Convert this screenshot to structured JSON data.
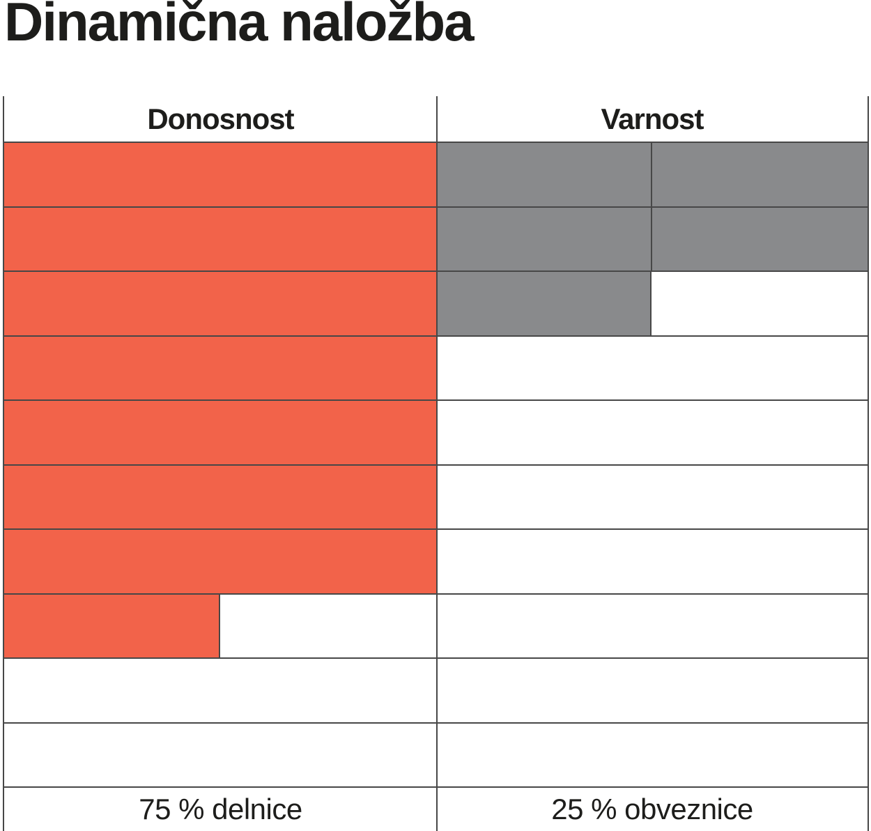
{
  "title": "Dinamična naložba",
  "colors": {
    "orange": "#F2634A",
    "gray": "#898A8C",
    "line": "#474747",
    "text": "#1D1D1B"
  },
  "table": {
    "header": {
      "left": "Donosnost",
      "right": "Varnost"
    },
    "footer": {
      "left": "75 % delnice",
      "right": "25 % obveznice"
    }
  },
  "chart_data": {
    "type": "bar",
    "subtype": "rating-grid",
    "title": "Dinamična naložba",
    "rows_total": 10,
    "columns": [
      {
        "header": "Donosnost",
        "label": "75 % delnice",
        "value_pct": 75,
        "filled_rows": 7.5,
        "color": "#F2634A"
      },
      {
        "header": "Varnost",
        "label": "25 % obveznice",
        "value_pct": 25,
        "filled_rows": 2.5,
        "color": "#898A8C"
      }
    ],
    "row_fills": {
      "donosnost": [
        1,
        1,
        1,
        1,
        1,
        1,
        1,
        0.5,
        0,
        0
      ],
      "varnost": [
        1,
        1,
        0.5,
        0,
        0,
        0,
        0,
        0,
        0,
        0
      ]
    },
    "legend_position": "bottom",
    "grid": true
  }
}
